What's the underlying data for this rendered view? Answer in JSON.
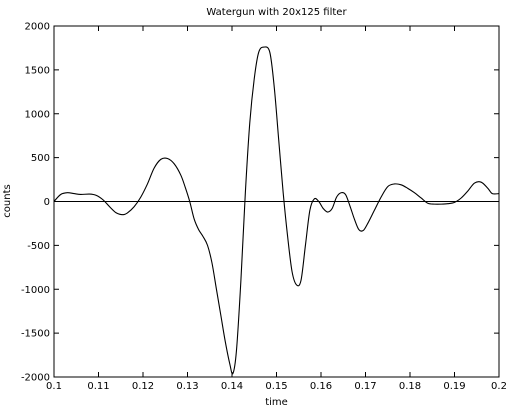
{
  "chart_data": {
    "type": "line",
    "title": "Watergun with 20x125 filter",
    "xlabel": "time",
    "ylabel": "counts",
    "xlim": [
      0.1,
      0.2
    ],
    "ylim": [
      -2000,
      2000
    ],
    "xticks": [
      0.1,
      0.11,
      0.12,
      0.13,
      0.14,
      0.15,
      0.16,
      0.17,
      0.18,
      0.19,
      0.2
    ],
    "xtick_labels": [
      "0.1",
      "0.11",
      "0.12",
      "0.13",
      "0.14",
      "0.15",
      "0.16",
      "0.17",
      "0.18",
      "0.19",
      "0.2"
    ],
    "yticks": [
      -2000,
      -1500,
      -1000,
      -500,
      0,
      500,
      1000,
      1500,
      2000
    ],
    "ytick_labels": [
      "-2000",
      "-1500",
      "-1000",
      "-500",
      "0",
      "500",
      "1000",
      "1500",
      "2000"
    ],
    "grid": false,
    "zero_line": true,
    "line_color": "#000000",
    "series": [
      {
        "x": [
          0.1,
          0.1015,
          0.103,
          0.1045,
          0.106,
          0.108,
          0.1095,
          0.111,
          0.1125,
          0.114,
          0.1155,
          0.1165,
          0.118,
          0.1195,
          0.121,
          0.1225,
          0.124,
          0.1255,
          0.127,
          0.1285,
          0.1295,
          0.1305,
          0.1315,
          0.1325,
          0.1335,
          0.1345,
          0.1355,
          0.1365,
          0.1375,
          0.1385,
          0.1395,
          0.1402,
          0.141,
          0.142,
          0.143,
          0.144,
          0.145,
          0.146,
          0.1472,
          0.1485,
          0.1495,
          0.1505,
          0.1515,
          0.1525,
          0.1535,
          0.1545,
          0.1555,
          0.1565,
          0.1575,
          0.1585,
          0.1595,
          0.1605,
          0.1615,
          0.1625,
          0.1635,
          0.1645,
          0.1655,
          0.1665,
          0.1675,
          0.1685,
          0.1695,
          0.1705,
          0.172,
          0.1735,
          0.175,
          0.1765,
          0.178,
          0.1795,
          0.181,
          0.1825,
          0.184,
          0.1855,
          0.187,
          0.1885,
          0.19,
          0.1915,
          0.193,
          0.1945,
          0.196,
          0.1975,
          0.1985,
          0.2
        ],
        "y": [
          0,
          80,
          100,
          90,
          80,
          85,
          70,
          20,
          -60,
          -130,
          -150,
          -130,
          -60,
          50,
          200,
          380,
          480,
          490,
          430,
          300,
          160,
          0,
          -200,
          -320,
          -400,
          -500,
          -700,
          -1000,
          -1300,
          -1600,
          -1850,
          -1960,
          -1700,
          -900,
          100,
          900,
          1400,
          1700,
          1760,
          1700,
          1300,
          700,
          100,
          -400,
          -800,
          -950,
          -900,
          -500,
          -100,
          30,
          0,
          -80,
          -120,
          -80,
          50,
          100,
          80,
          -50,
          -200,
          -320,
          -330,
          -250,
          -100,
          50,
          170,
          200,
          190,
          150,
          100,
          40,
          -20,
          -30,
          -30,
          -25,
          -10,
          40,
          120,
          210,
          220,
          150,
          90,
          90
        ]
      }
    ]
  }
}
